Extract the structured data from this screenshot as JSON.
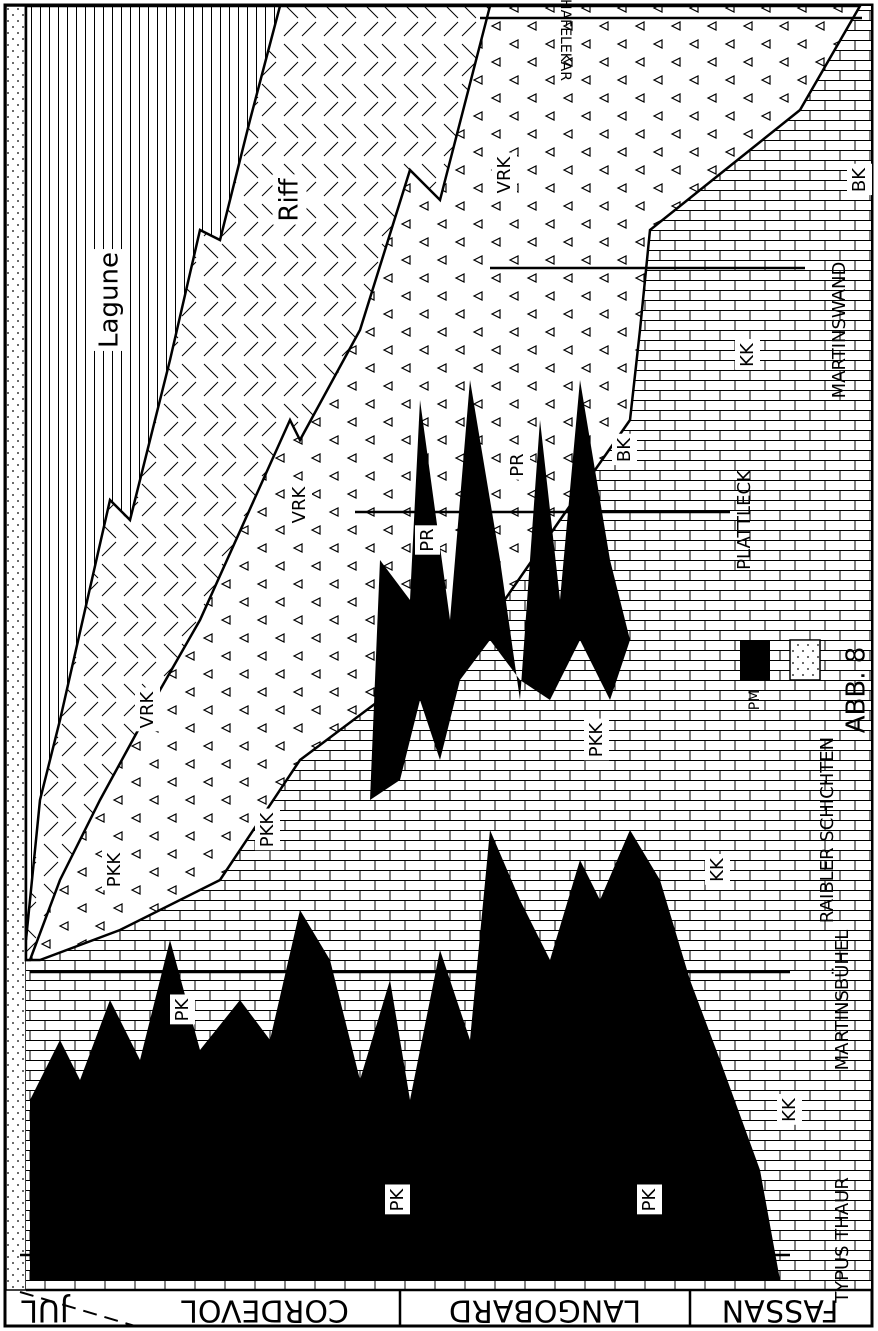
{
  "stages": [
    "JUL",
    "CORDEVOL",
    "LANGOBARD",
    "FASSAN"
  ],
  "profiles": [
    "TYPUS THAUR",
    "MARTINSBÜHEL",
    "PLATTLECK",
    "MARTINSWAND",
    "HAFELEKAR"
  ],
  "facies_labels": [
    "Lagune",
    "Riff",
    "VRK",
    "VRK",
    "VRK",
    "PKK",
    "PKK",
    "PKK",
    "PK",
    "PK",
    "PK",
    "KK",
    "KK",
    "KK",
    "BK",
    "BK",
    "PR",
    "PR"
  ],
  "legend": [
    "PM",
    "RAIBLER SCHICHTEN"
  ],
  "figure_label": "ABB. 8"
}
